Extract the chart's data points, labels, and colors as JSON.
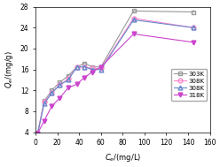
{
  "series": [
    {
      "label": "303K",
      "color": "#999999",
      "marker": "s",
      "markerfacecolor": "none",
      "markersize": 3.5,
      "x": [
        2,
        8,
        15,
        22,
        30,
        38,
        45,
        52,
        60,
        90,
        145
      ],
      "y": [
        3.8,
        10.0,
        12.0,
        13.5,
        14.8,
        16.5,
        17.2,
        16.5,
        16.5,
        27.2,
        27.0
      ]
    },
    {
      "label": "308K",
      "color": "#ff88cc",
      "marker": "o",
      "markerfacecolor": "none",
      "markersize": 3.5,
      "x": [
        2,
        8,
        15,
        22,
        30,
        38,
        45,
        52,
        60,
        90,
        145
      ],
      "y": [
        3.8,
        9.8,
        11.5,
        13.0,
        14.2,
        16.5,
        16.5,
        16.2,
        16.2,
        25.8,
        24.0
      ]
    },
    {
      "label": "308K",
      "color": "#6688cc",
      "marker": "^",
      "markerfacecolor": "none",
      "markersize": 3.5,
      "x": [
        2,
        8,
        15,
        22,
        30,
        38,
        45,
        52,
        60,
        90,
        145
      ],
      "y": [
        3.8,
        9.5,
        11.5,
        13.0,
        14.0,
        16.5,
        16.5,
        16.0,
        16.0,
        25.5,
        24.0
      ]
    },
    {
      "label": "318K",
      "color": "#cc44cc",
      "marker": "v",
      "markerfacecolor": "#cc44cc",
      "markersize": 3.5,
      "x": [
        2,
        8,
        15,
        22,
        30,
        38,
        45,
        52,
        60,
        90,
        145
      ],
      "y": [
        3.8,
        6.2,
        9.0,
        10.5,
        12.5,
        13.2,
        14.5,
        15.5,
        16.5,
        22.8,
        21.2
      ]
    }
  ],
  "xlabel": "$C_e$/(mg/L)",
  "ylabel": "$Q_e$/(mg/g)",
  "xlim": [
    0,
    160
  ],
  "ylim": [
    4,
    28
  ],
  "xticks": [
    0,
    20,
    40,
    60,
    80,
    100,
    120,
    140,
    160
  ],
  "yticks": [
    4,
    8,
    12,
    16,
    20,
    24,
    28
  ],
  "figsize": [
    2.48,
    1.89
  ],
  "dpi": 100
}
